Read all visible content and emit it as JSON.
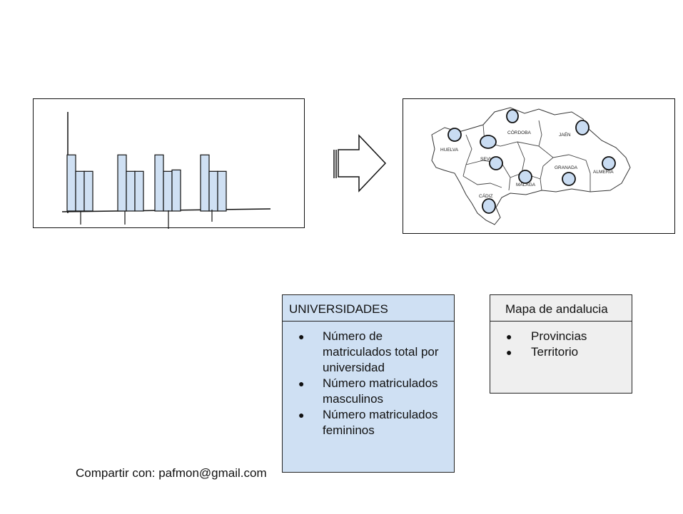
{
  "colors": {
    "bar_fill": "#cfe0f3",
    "marker_fill": "#c9dcf2",
    "outline": "#111111",
    "card_univ_bg": "#cfe0f3",
    "card_map_bg": "#efefef"
  },
  "chart_sketch": {
    "groups": [
      {
        "bars": [
          0.82,
          0.58,
          0.58
        ]
      },
      {
        "bars": [
          0.82,
          0.58,
          0.58
        ]
      },
      {
        "bars": [
          0.82,
          0.58,
          0.6
        ]
      },
      {
        "bars": [
          0.82,
          0.58,
          0.58
        ]
      }
    ]
  },
  "map": {
    "provinces": [
      {
        "label": "HUELVA"
      },
      {
        "label": "CÓRDOBA"
      },
      {
        "label": "JAÉN"
      },
      {
        "label": "SEVI"
      },
      {
        "label": "GRANADA"
      },
      {
        "label": "ALMERÍA"
      },
      {
        "label": "MÁLAGA"
      },
      {
        "label": "CÁDIZ"
      }
    ]
  },
  "card_universidades": {
    "title": "UNIVERSIDADES",
    "items": [
      {
        "bullet": "●",
        "text": "Número de matriculados total por universidad"
      },
      {
        "bullet": "●",
        "text": "Número matriculados masculinos"
      },
      {
        "bullet": "●",
        "text": "Número matriculados femininos"
      }
    ]
  },
  "card_mapa": {
    "title": "Mapa de andalucia",
    "items": [
      {
        "bullet": "●",
        "text": "Provincias"
      },
      {
        "bullet": "●",
        "text": "Territorio"
      }
    ]
  },
  "footer": {
    "share_text": "Compartir con: pafmon@gmail.com"
  }
}
